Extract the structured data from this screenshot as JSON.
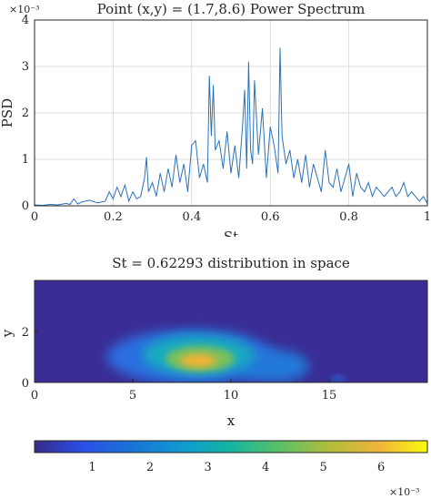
{
  "chart_data": [
    {
      "type": "line",
      "title": "Point (x,y) = (1.7,8.6) Power Spectrum",
      "xlabel": "St",
      "ylabel": "PSD",
      "xlim": [
        0,
        1
      ],
      "ylim": [
        0,
        0.004
      ],
      "y_multiplier_label": "×10⁻³",
      "x_ticks": [
        "0",
        "0.2",
        "0.4",
        "0.6",
        "0.8",
        "1"
      ],
      "y_ticks": [
        "0",
        "1",
        "2",
        "3",
        "4"
      ],
      "grid": true,
      "color": "#2b72b8",
      "series": [
        {
          "x": [
            0.0,
            0.02,
            0.04,
            0.06,
            0.08,
            0.09,
            0.1,
            0.11,
            0.12,
            0.14,
            0.16,
            0.18,
            0.19,
            0.2,
            0.21,
            0.22,
            0.23,
            0.24,
            0.25,
            0.26,
            0.27,
            0.28,
            0.285,
            0.29,
            0.3,
            0.31,
            0.32,
            0.33,
            0.34,
            0.35,
            0.36,
            0.37,
            0.38,
            0.39,
            0.4,
            0.41,
            0.42,
            0.43,
            0.44,
            0.445,
            0.45,
            0.455,
            0.46,
            0.47,
            0.48,
            0.49,
            0.5,
            0.51,
            0.52,
            0.53,
            0.535,
            0.54,
            0.545,
            0.55,
            0.555,
            0.56,
            0.57,
            0.58,
            0.59,
            0.6,
            0.61,
            0.62,
            0.625,
            0.63,
            0.64,
            0.65,
            0.66,
            0.67,
            0.68,
            0.69,
            0.7,
            0.71,
            0.72,
            0.73,
            0.74,
            0.75,
            0.76,
            0.77,
            0.78,
            0.79,
            0.8,
            0.81,
            0.82,
            0.83,
            0.84,
            0.85,
            0.86,
            0.87,
            0.88,
            0.89,
            0.9,
            0.91,
            0.92,
            0.93,
            0.94,
            0.95,
            0.96,
            0.97,
            0.98,
            0.99,
            1.0
          ],
          "y": [
            2e-05,
            1e-05,
            3e-05,
            2e-05,
            5e-05,
            3e-05,
            0.00015,
            4e-05,
            8e-05,
            0.00012,
            6e-05,
            0.0001,
            0.0003,
            0.00015,
            0.0004,
            0.0002,
            0.00045,
            0.0001,
            0.0003,
            0.00015,
            0.0002,
            0.0006,
            0.00105,
            0.0003,
            0.0005,
            0.0002,
            0.0007,
            0.0003,
            0.0008,
            0.0004,
            0.0011,
            0.0005,
            0.0009,
            0.0003,
            0.0013,
            0.0014,
            0.0006,
            0.0009,
            0.0005,
            0.0028,
            0.0015,
            0.0026,
            0.0012,
            0.0014,
            0.0008,
            0.0016,
            0.0007,
            0.0013,
            0.0006,
            0.0018,
            0.0025,
            0.0008,
            0.0031,
            0.0012,
            0.0009,
            0.0027,
            0.0011,
            0.0021,
            0.0006,
            0.0017,
            0.0013,
            0.0007,
            0.0034,
            0.0015,
            0.0009,
            0.0012,
            0.0006,
            0.001,
            0.0005,
            0.0011,
            0.0004,
            0.0009,
            0.0006,
            0.0003,
            0.0012,
            0.0005,
            0.0004,
            0.0008,
            0.0003,
            0.0006,
            0.0009,
            0.0002,
            0.0007,
            0.0004,
            0.0003,
            0.0005,
            0.0002,
            0.0004,
            0.0003,
            0.0002,
            0.0003,
            0.0004,
            0.0002,
            0.0003,
            0.0005,
            0.0002,
            0.0003,
            0.0002,
            0.0001,
            0.0002,
            5e-05
          ]
        }
      ]
    },
    {
      "type": "heatmap",
      "title": "St = 0.62293 distribution in space",
      "xlabel": "x",
      "ylabel": "y",
      "xlim": [
        0,
        20
      ],
      "ylim": [
        0,
        4
      ],
      "x_ticks": [
        "0",
        "5",
        "10",
        "15"
      ],
      "y_ticks": [
        "0",
        "2"
      ],
      "colorbar": {
        "range": [
          0,
          0.0068
        ],
        "ticks": [
          "1",
          "2",
          "3",
          "4",
          "5",
          "6"
        ],
        "multiplier_label": "×10⁻³"
      },
      "colormap": "parula"
    }
  ]
}
